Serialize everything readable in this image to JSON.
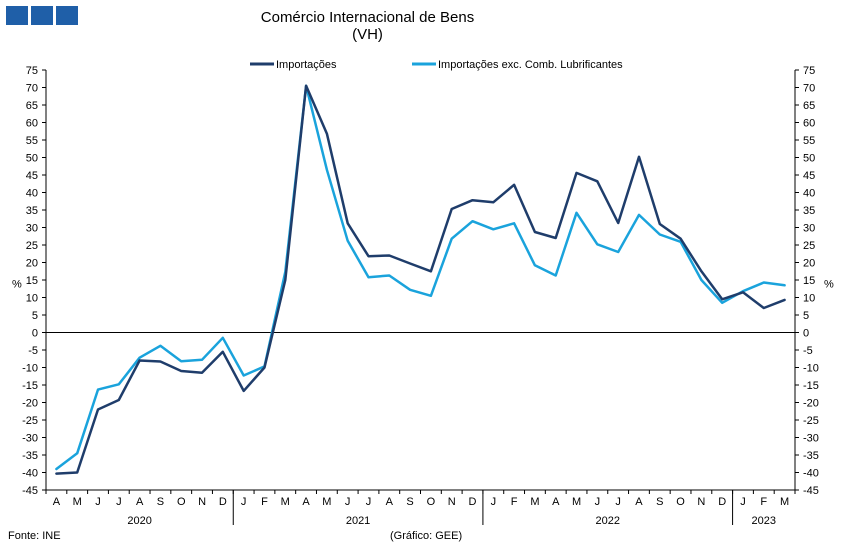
{
  "header": {
    "title": "Comércio Internacional de Bens",
    "subtitle": "(VH)"
  },
  "footer": {
    "source": "Fonte: INE",
    "credit": "(Gráfico: GEE)"
  },
  "colors": {
    "series1": "#1f3d6b",
    "series2": "#1aa3dc",
    "logo": "#1f5fa8"
  },
  "chart_data": {
    "type": "line",
    "title": "Comércio Internacional de Bens",
    "subtitle": "(VH)",
    "ylabel_left": "%",
    "ylabel_right": "%",
    "ylim": [
      -45,
      75
    ],
    "yticks": [
      75,
      70,
      65,
      60,
      55,
      50,
      45,
      40,
      35,
      30,
      25,
      20,
      15,
      10,
      5,
      0,
      -5,
      -10,
      -15,
      -20,
      -25,
      -30,
      -35,
      -40,
      -45
    ],
    "categories": [
      "A",
      "M",
      "J",
      "J",
      "A",
      "S",
      "O",
      "N",
      "D",
      "J",
      "F",
      "M",
      "A",
      "M",
      "J",
      "J",
      "A",
      "S",
      "O",
      "N",
      "D",
      "J",
      "F",
      "M",
      "A",
      "M",
      "J",
      "J",
      "A",
      "S",
      "O",
      "N",
      "D",
      "J",
      "F",
      "M"
    ],
    "years": [
      {
        "label": "2020",
        "start": 0,
        "end": 8
      },
      {
        "label": "2021",
        "start": 9,
        "end": 20
      },
      {
        "label": "2022",
        "start": 21,
        "end": 32
      },
      {
        "label": "2023",
        "start": 33,
        "end": 35
      }
    ],
    "legend": [
      "Importações",
      "Importações exc. Comb. Lubrificantes"
    ],
    "series": [
      {
        "name": "Importações",
        "values": [
          -40.3,
          -40.0,
          -22.0,
          -19.3,
          -8.0,
          -8.3,
          -11.0,
          -11.5,
          -5.5,
          -16.7,
          -10.0,
          15.0,
          70.5,
          56.8,
          31.2,
          21.8,
          22.0,
          19.7,
          17.5,
          35.3,
          37.8,
          37.2,
          42.2,
          28.7,
          27.0,
          45.6,
          43.2,
          31.3,
          50.2,
          31.0,
          26.8,
          17.5,
          9.5,
          11.5,
          7.0,
          9.3
        ]
      },
      {
        "name": "Importações exc. Comb. Lubrificantes",
        "values": [
          -39.0,
          -34.5,
          -16.3,
          -14.8,
          -7.2,
          -3.8,
          -8.2,
          -7.8,
          -1.5,
          -12.3,
          -9.7,
          17.3,
          70.5,
          46.5,
          26.2,
          15.8,
          16.3,
          12.2,
          10.5,
          26.8,
          31.8,
          29.5,
          31.2,
          19.2,
          16.3,
          34.2,
          25.2,
          23.0,
          33.6,
          28.0,
          25.9,
          15.0,
          8.5,
          11.8,
          14.3,
          13.5
        ]
      }
    ]
  }
}
